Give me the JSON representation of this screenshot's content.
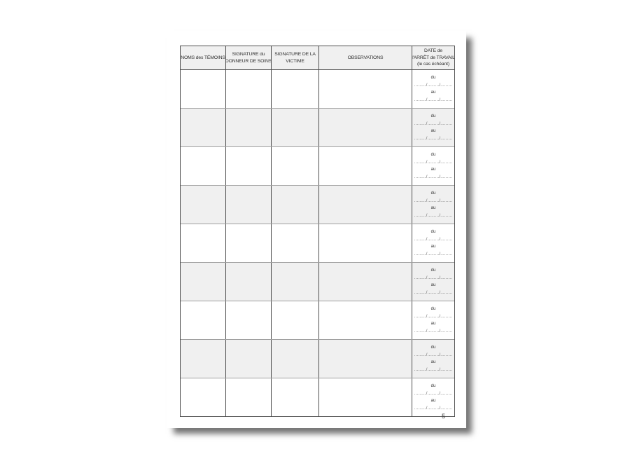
{
  "document": {
    "page_number": "5",
    "table": {
      "headers": [
        {
          "lines": [
            "NOMS des TÉMOINS"
          ]
        },
        {
          "lines": [
            "SIGNATURE du",
            "DONNEUR DE SOINS"
          ]
        },
        {
          "lines": [
            "SIGNATURE DE LA",
            "VICTIME"
          ]
        },
        {
          "lines": [
            "OBSERVATIONS"
          ]
        },
        {
          "lines": [
            "DATE de",
            "l'ARRÊT de TRAVAIL",
            "(le cas échéant)"
          ]
        }
      ],
      "row_count": 9,
      "date_cell": {
        "from_label": "du",
        "to_label": "au",
        "dotted_line": "........./........./........."
      }
    },
    "colors": {
      "border_dark": "#4d4d4d",
      "row_separator": "#a0a0a0",
      "header_fill": "#f0f0f0",
      "alt_row_fill": "#f0f0f0",
      "page_background": "#ffffff",
      "text": "#2e2e2e"
    }
  }
}
